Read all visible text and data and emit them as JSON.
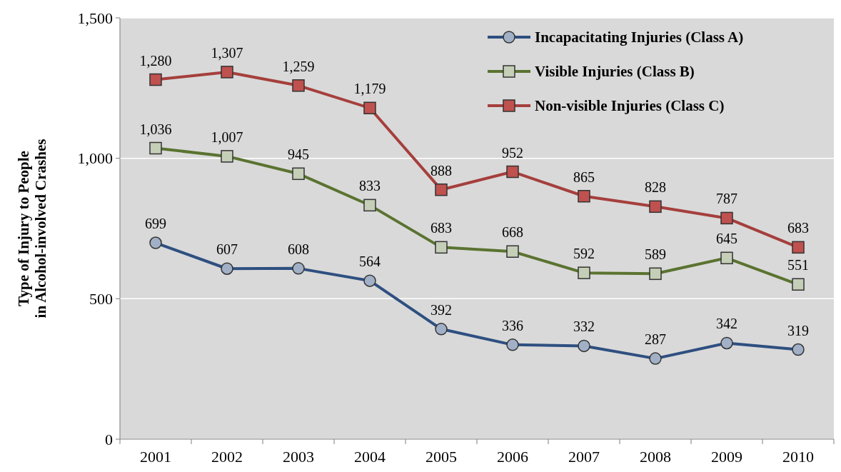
{
  "chart_data": {
    "type": "line",
    "ylabel": "Type of Injury to People\nin Alcohol-involved Crashes",
    "categories": [
      "2001",
      "2002",
      "2003",
      "2004",
      "2005",
      "2006",
      "2007",
      "2008",
      "2009",
      "2010"
    ],
    "series": [
      {
        "name": "Incapacitating Injuries (Class A)",
        "color": "#2e4f80",
        "marker": "circle",
        "values": [
          699,
          607,
          608,
          564,
          392,
          336,
          332,
          287,
          342,
          319
        ],
        "value_labels": [
          "699",
          "607",
          "608",
          "564",
          "392",
          "336",
          "332",
          "287",
          "342",
          "319"
        ]
      },
      {
        "name": "Visible Injuries (Class B)",
        "color": "#5a7330",
        "marker": "square",
        "values": [
          1036,
          1007,
          945,
          833,
          683,
          668,
          592,
          589,
          645,
          551
        ],
        "value_labels": [
          "1,036",
          "1,007",
          "945",
          "833",
          "683",
          "668",
          "592",
          "589",
          "645",
          "551"
        ]
      },
      {
        "name": "Non-visible Injuries (Class C)",
        "color": "#a53f3c",
        "marker": "square",
        "values": [
          1280,
          1307,
          1259,
          1179,
          888,
          952,
          865,
          828,
          787,
          683
        ],
        "value_labels": [
          "1,280",
          "1,307",
          "1,259",
          "1,179",
          "888",
          "952",
          "865",
          "828",
          "787",
          "683"
        ]
      }
    ],
    "ylim": [
      0,
      1500
    ],
    "yticks": [
      0,
      {
        "value": 500,
        "label": "500"
      },
      {
        "value": 1000,
        "label": "1,000"
      },
      {
        "value": 1500,
        "label": "1,500"
      }
    ],
    "grid": "y",
    "legend": "top right"
  }
}
